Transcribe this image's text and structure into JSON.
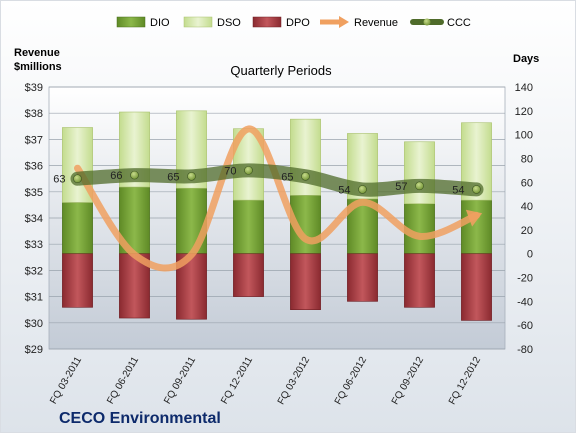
{
  "company": "CECO Environmental",
  "chart_data": {
    "type": "bar",
    "title": "Quarterly Periods",
    "left_axis_label": [
      "Revenue",
      "$millions"
    ],
    "right_axis_label": "Days",
    "categories": [
      "FQ 03-2011",
      "FQ 06-2011",
      "FQ 09-2011",
      "FQ 12-2011",
      "FQ 03-2012",
      "FQ 06-2012",
      "FQ 09-2012",
      "FQ 12-2012"
    ],
    "left_axis": {
      "min": 29,
      "max": 39,
      "step": 1,
      "tick_prefix": "$"
    },
    "right_axis": {
      "min": -80,
      "max": 140,
      "step": 20
    },
    "grid": true,
    "legend_position": "top",
    "series": [
      {
        "name": "DIO",
        "axis": "right",
        "kind": "stacked-bar",
        "color": "#7aa23a",
        "values": [
          43,
          56,
          55,
          45,
          49,
          46,
          42,
          45
        ]
      },
      {
        "name": "DSO",
        "axis": "right",
        "kind": "stacked-bar",
        "color": "#d0e4a6",
        "values": [
          63,
          63,
          65,
          60,
          64,
          55,
          52,
          65
        ]
      },
      {
        "name": "DPO",
        "axis": "right",
        "kind": "bar-below-zero",
        "color": "#a84045",
        "values": [
          -45,
          -54,
          -55,
          -36,
          -47,
          -40,
          -45,
          -56
        ]
      },
      {
        "name": "Revenue",
        "axis": "left",
        "kind": "smooth-line",
        "color": "#f0a060",
        "values": [
          35.9,
          32.6,
          32.6,
          37.4,
          33.2,
          34.6,
          33.3,
          34.1
        ]
      },
      {
        "name": "CCC",
        "axis": "right",
        "kind": "line-markers",
        "color": "#4f6b2a",
        "values": [
          63,
          66,
          65,
          70,
          65,
          54,
          57,
          54
        ],
        "labels": [
          "63",
          "66",
          "65",
          "70",
          "65",
          "54",
          "57",
          "54"
        ]
      }
    ]
  }
}
